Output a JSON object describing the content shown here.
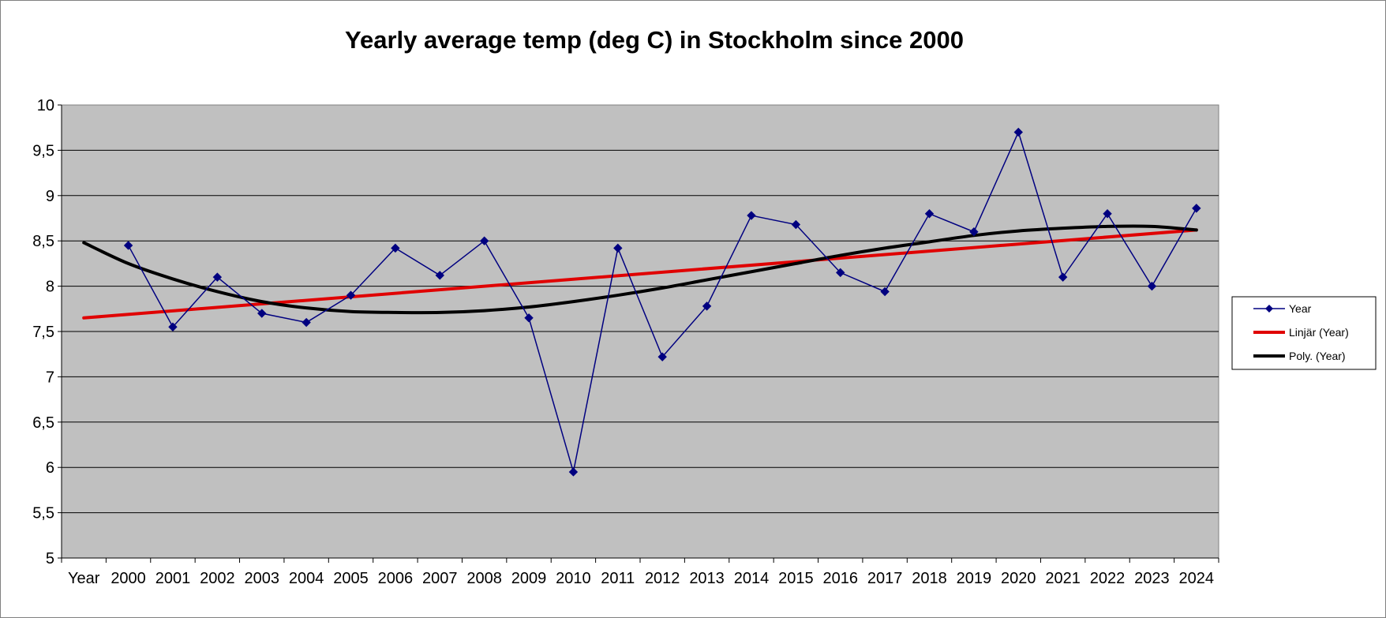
{
  "chart_data": {
    "type": "line",
    "title": "Yearly average temp (deg C) in Stockholm since 2000",
    "categories": [
      "Year",
      "2000",
      "2001",
      "2002",
      "2003",
      "2004",
      "2005",
      "2006",
      "2007",
      "2008",
      "2009",
      "2010",
      "2011",
      "2012",
      "2013",
      "2014",
      "2015",
      "2016",
      "2017",
      "2018",
      "2019",
      "2020",
      "2021",
      "2022",
      "2023",
      "2024"
    ],
    "ylim": [
      5,
      10
    ],
    "yticks": [
      "10",
      "9,5",
      "9",
      "8,5",
      "8",
      "7,5",
      "7",
      "6,5",
      "6",
      "5,5",
      "5"
    ],
    "grid": true,
    "plot_background": "#c0c0c0",
    "legend_position": "right",
    "series": [
      {
        "name": "Year",
        "color": "#000080",
        "marker": "diamond",
        "points": [
          {
            "x": "2000",
            "y": 8.45
          },
          {
            "x": "2001",
            "y": 7.55
          },
          {
            "x": "2002",
            "y": 8.1
          },
          {
            "x": "2003",
            "y": 7.7
          },
          {
            "x": "2004",
            "y": 7.6
          },
          {
            "x": "2005",
            "y": 7.9
          },
          {
            "x": "2006",
            "y": 8.42
          },
          {
            "x": "2007",
            "y": 8.12
          },
          {
            "x": "2008",
            "y": 8.5
          },
          {
            "x": "2009",
            "y": 7.65
          },
          {
            "x": "2010",
            "y": 5.95
          },
          {
            "x": "2011",
            "y": 8.42
          },
          {
            "x": "2012",
            "y": 7.22
          },
          {
            "x": "2013",
            "y": 7.78
          },
          {
            "x": "2014",
            "y": 8.78
          },
          {
            "x": "2015",
            "y": 8.68
          },
          {
            "x": "2016",
            "y": 8.15
          },
          {
            "x": "2017",
            "y": 7.94
          },
          {
            "x": "2018",
            "y": 8.8
          },
          {
            "x": "2019",
            "y": 8.6
          },
          {
            "x": "2020",
            "y": 9.7
          },
          {
            "x": "2021",
            "y": 8.1
          },
          {
            "x": "2022",
            "y": 8.8
          },
          {
            "x": "2023",
            "y": 8.0
          },
          {
            "x": "2024",
            "y": 8.86
          }
        ]
      },
      {
        "name": "Linjär (Year)",
        "color": "#e00000",
        "type": "trendline",
        "points": [
          {
            "x": "Year",
            "y": 7.65
          },
          {
            "x": "2024",
            "y": 8.62
          }
        ]
      },
      {
        "name": "Poly. (Year)",
        "color": "#000000",
        "type": "trendline",
        "points": [
          {
            "x": "Year",
            "y": 8.48
          },
          {
            "x": "2000",
            "y": 8.25
          },
          {
            "x": "2001",
            "y": 8.08
          },
          {
            "x": "2002",
            "y": 7.94
          },
          {
            "x": "2003",
            "y": 7.83
          },
          {
            "x": "2004",
            "y": 7.76
          },
          {
            "x": "2005",
            "y": 7.72
          },
          {
            "x": "2006",
            "y": 7.71
          },
          {
            "x": "2007",
            "y": 7.71
          },
          {
            "x": "2008",
            "y": 7.73
          },
          {
            "x": "2009",
            "y": 7.77
          },
          {
            "x": "2010",
            "y": 7.83
          },
          {
            "x": "2011",
            "y": 7.9
          },
          {
            "x": "2012",
            "y": 7.98
          },
          {
            "x": "2013",
            "y": 8.07
          },
          {
            "x": "2014",
            "y": 8.16
          },
          {
            "x": "2015",
            "y": 8.25
          },
          {
            "x": "2016",
            "y": 8.34
          },
          {
            "x": "2017",
            "y": 8.42
          },
          {
            "x": "2018",
            "y": 8.49
          },
          {
            "x": "2019",
            "y": 8.56
          },
          {
            "x": "2020",
            "y": 8.61
          },
          {
            "x": "2021",
            "y": 8.64
          },
          {
            "x": "2022",
            "y": 8.66
          },
          {
            "x": "2023",
            "y": 8.66
          },
          {
            "x": "2024",
            "y": 8.62
          }
        ]
      }
    ]
  }
}
